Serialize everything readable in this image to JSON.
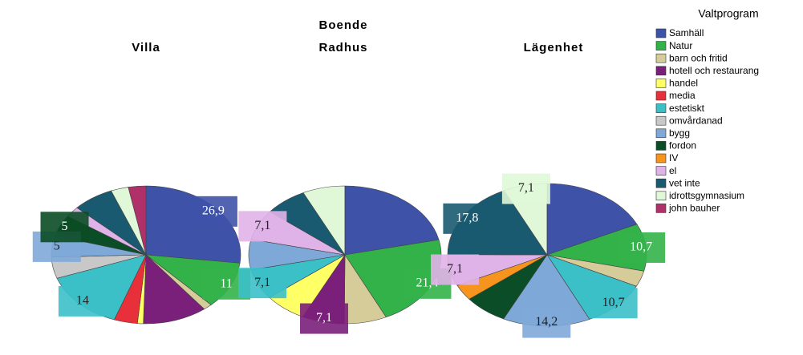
{
  "chart_data": {
    "type": "pie",
    "title": "Boende",
    "legend_title": "Valtprogram",
    "categories": [
      "Samhäll",
      "Natur",
      "barn och fritid",
      "hotell och restaurang",
      "handel",
      "media",
      "estetiskt",
      "omvårdanad",
      "bygg",
      "fordon",
      "IV",
      "el",
      "vet inte",
      "idrottsgymnasium",
      "john bauher"
    ],
    "colors": [
      "#3e52a8",
      "#33b24a",
      "#d6cc99",
      "#7a1f7a",
      "#ffff66",
      "#e8303a",
      "#3cc0c8",
      "#c8c8c8",
      "#7ea8d8",
      "#0b4d26",
      "#f7941d",
      "#e0b3e8",
      "#1a5a70",
      "#e0f8d8",
      "#b0306a"
    ],
    "series": [
      {
        "name": "Villa",
        "values": [
          26.9,
          11,
          1.5,
          11,
          1,
          4,
          14,
          5,
          5,
          5,
          0,
          2.5,
          7,
          3,
          3
        ],
        "value_labels": [
          "26,9",
          "11",
          null,
          null,
          null,
          null,
          "14",
          null,
          "5",
          "5",
          null,
          null,
          null,
          null,
          null
        ]
      },
      {
        "name": "Radhus",
        "values": [
          21.4,
          21.4,
          7.1,
          7.1,
          7.1,
          0,
          7.1,
          0,
          7.1,
          0,
          0,
          7.1,
          7.1,
          7.1,
          0
        ],
        "value_labels": [
          null,
          "21,4",
          null,
          "7,1",
          null,
          null,
          "7,1",
          null,
          null,
          null,
          null,
          "7,1",
          null,
          null,
          null
        ]
      },
      {
        "name": "Lägenhet",
        "values": [
          17.9,
          10.7,
          3.6,
          0,
          0,
          0,
          10.7,
          0,
          14.2,
          7.1,
          3.6,
          7.1,
          17.8,
          7.1,
          0
        ],
        "value_labels": [
          null,
          "10,7",
          null,
          null,
          null,
          null,
          "10,7",
          null,
          "14,2",
          null,
          null,
          "7,1",
          "17,8",
          "7,1",
          null
        ]
      }
    ]
  }
}
